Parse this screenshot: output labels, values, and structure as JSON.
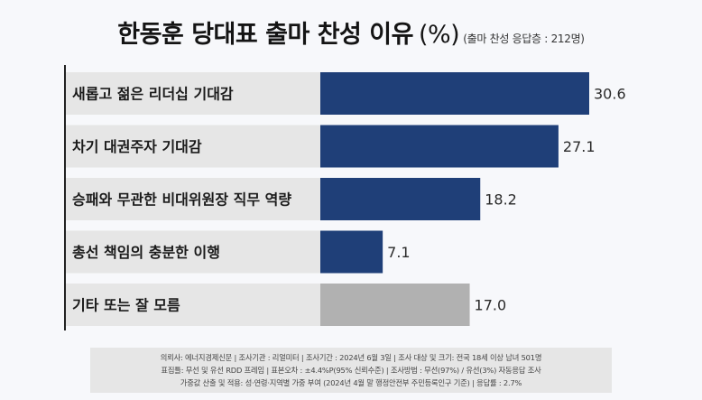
{
  "title": {
    "main": "한동훈 당대표 출마 찬성 이유",
    "unit": "(%)",
    "sub": "(출마 찬성 응답층 : 212명)"
  },
  "colors": {
    "primary": "#1f3f78",
    "other": "#b1b1b1",
    "label_bg": "#e6e6e6",
    "text": "#1a1a1a"
  },
  "chart_data": {
    "type": "bar",
    "orientation": "horizontal",
    "title": "한동훈 당대표 출마 찬성 이유",
    "unit": "%",
    "xlim": [
      0,
      35
    ],
    "categories": [
      "새롭고 젊은 리더십 기대감",
      "차기 대권주자 기대감",
      "승패와 무관한 비대위원장 직무 역량",
      "총선 책임의 충분한 이행",
      "기타 또는 잘 모름"
    ],
    "values": [
      30.6,
      27.1,
      18.2,
      7.1,
      17.0
    ],
    "value_labels": [
      "30.6",
      "27.1",
      "18.2",
      "7.1",
      "17.0"
    ],
    "highlight": [
      "primary",
      "primary",
      "primary",
      "primary",
      "other"
    ]
  },
  "footer": {
    "line1": "의뢰사: 에너지경제신문 | 조사기관 : 리얼미터 | 조사기간 : 2024년 6월 3일 | 조사 대상 및 크기: 전국 18세 이상 남녀 501명",
    "line2": "표집틀: 무선 및 유선 RDD 프레임 | 표본오차 : ±4.4%P(95% 신뢰수준) | 조사방법 : 무선(97%) / 유선(3%) 자동응답 조사",
    "line3": "가중값 산출 및 적용: 성·연령·지역별 가중 부여 (2024년 4월 말 행정안전부 주민등록인구 기준) | 응답률 : 2.7%"
  }
}
